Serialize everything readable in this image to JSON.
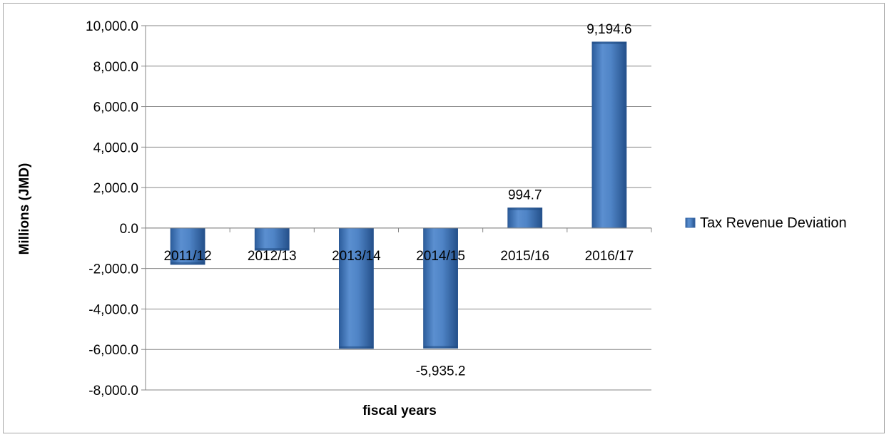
{
  "chart_data": {
    "type": "bar",
    "title": "",
    "xlabel": "fiscal years",
    "ylabel": "Millions (JMD)",
    "categories": [
      "2011/12",
      "2012/13",
      "2013/14",
      "2014/15",
      "2015/16",
      "2016/17"
    ],
    "series": [
      {
        "name": "Tax Revenue Deviation",
        "values": [
          -1800.0,
          -1100.0,
          -5950.0,
          -5935.2,
          994.7,
          9194.6
        ],
        "color": "#4a7ebb"
      }
    ],
    "data_labels": [
      {
        "index": 3,
        "text": "-5,935.2"
      },
      {
        "index": 4,
        "text": "994.7"
      },
      {
        "index": 5,
        "text": "9,194.6"
      }
    ],
    "ylim": [
      -8000,
      10000
    ],
    "yticks": [
      10000,
      8000,
      6000,
      4000,
      2000,
      0,
      -2000,
      -4000,
      -6000,
      -8000
    ],
    "ytick_labels": [
      "10,000.0",
      "8,000.0",
      "6,000.0",
      "4,000.0",
      "2,000.0",
      "0.0",
      "-2,000.0",
      "-4,000.0",
      "-6,000.0",
      "-8,000.0"
    ],
    "grid": true,
    "legend_position": "right"
  }
}
